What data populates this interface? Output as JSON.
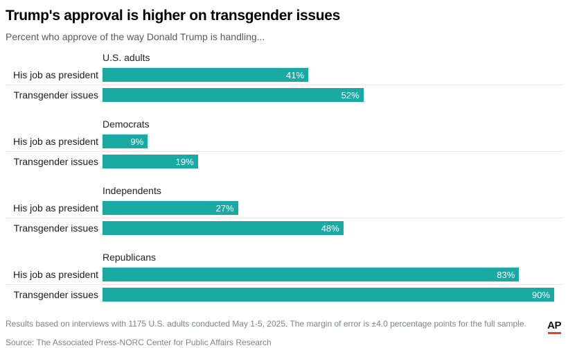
{
  "header": {
    "title": "Trump's approval is higher on transgender issues",
    "subtitle": "Percent who approve of the way Donald Trump is handling..."
  },
  "chart_data": {
    "type": "bar",
    "orientation": "horizontal",
    "title": "Trump's approval is higher on transgender issues",
    "subtitle": "Percent who approve of the way Donald Trump is handling...",
    "categories": [
      "His job as president",
      "Transgender issues"
    ],
    "groups": [
      {
        "name": "U.S. adults",
        "values": [
          41,
          52
        ]
      },
      {
        "name": "Democrats",
        "values": [
          9,
          19
        ]
      },
      {
        "name": "Independents",
        "values": [
          27,
          48
        ]
      },
      {
        "name": "Republicans",
        "values": [
          83,
          90
        ]
      }
    ],
    "value_suffix": "%",
    "xlim": [
      0,
      90
    ],
    "bar_color": "#1aa9a3",
    "separator_style": "dotted",
    "value_label_position": "inside-end",
    "value_label_color": "#ffffff",
    "legend": "none"
  },
  "footer": {
    "note": "Results based on interviews with 1175 U.S. adults conducted May 1-5, 2025. The margin of error is ±4.0 percentage points for the full sample.",
    "source": "Source: The Associated Press-NORC Center for Public Affairs Research",
    "logo_text": "AP",
    "logo_underline_color": "#ff322e"
  }
}
